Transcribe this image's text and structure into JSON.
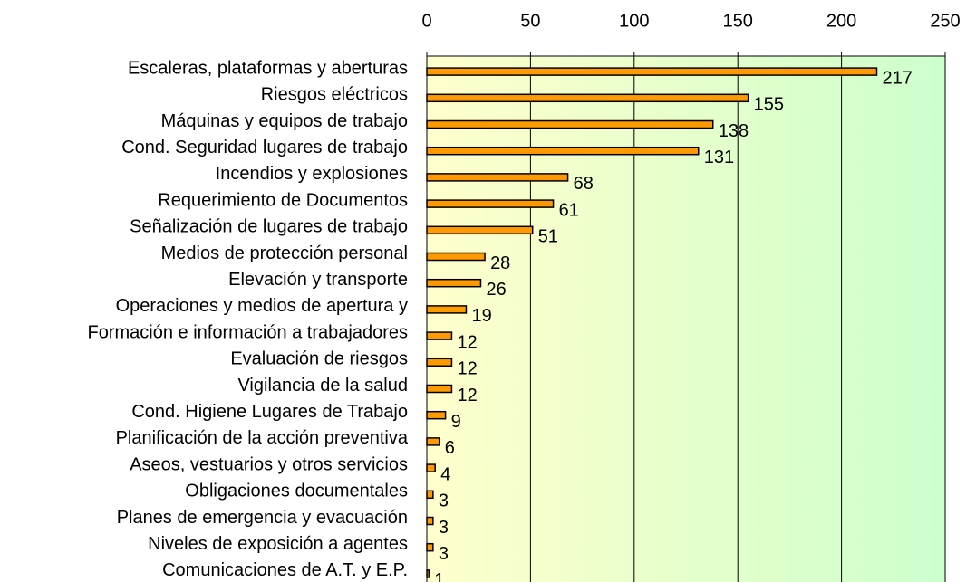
{
  "chart_data": {
    "type": "bar",
    "orientation": "horizontal",
    "categories": [
      "Escaleras, plataformas y aberturas",
      "Riesgos eléctricos",
      "Máquinas y equipos de trabajo",
      "Cond. Seguridad lugares de trabajo",
      "Incendios y explosiones",
      "Requerimiento de Documentos",
      "Señalización de lugares de trabajo",
      "Medios de protección personal",
      "Elevación y transporte",
      "Operaciones y medios de apertura y",
      "Formación e información a trabajadores",
      "Evaluación de riesgos",
      "Vigilancia de la salud",
      "Cond. Higiene Lugares de Trabajo",
      "Planificación de la acción preventiva",
      "Aseos, vestuarios y otros servicios",
      "Obligaciones documentales",
      "Planes de emergencia y evacuación",
      "Niveles de exposición a agentes",
      "Comunicaciones de A.T. y E.P."
    ],
    "values": [
      217,
      155,
      138,
      131,
      68,
      61,
      51,
      28,
      26,
      19,
      12,
      12,
      12,
      9,
      6,
      4,
      3,
      3,
      3,
      1
    ],
    "color": "#ff9900",
    "xlim": [
      0,
      250
    ],
    "xticks": [
      0,
      50,
      100,
      150,
      200,
      250
    ],
    "grid": true
  }
}
